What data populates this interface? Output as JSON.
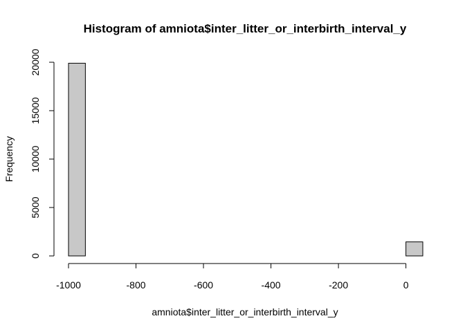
{
  "chart_data": {
    "type": "bar",
    "title": "Histogram of amniota$inter_litter_or_interbirth_interval_y",
    "xlabel": "amniota$inter_litter_or_interbirth_interval_y",
    "ylabel": "Frequency",
    "bin_width": 50,
    "bins": [
      {
        "start": -1000,
        "end": -950,
        "count": 19900
      },
      {
        "start": -950,
        "end": -900,
        "count": 0
      },
      {
        "start": -900,
        "end": -850,
        "count": 0
      },
      {
        "start": -850,
        "end": -800,
        "count": 0
      },
      {
        "start": -800,
        "end": -750,
        "count": 0
      },
      {
        "start": -750,
        "end": -700,
        "count": 0
      },
      {
        "start": -700,
        "end": -650,
        "count": 0
      },
      {
        "start": -650,
        "end": -600,
        "count": 0
      },
      {
        "start": -600,
        "end": -550,
        "count": 0
      },
      {
        "start": -550,
        "end": -500,
        "count": 0
      },
      {
        "start": -500,
        "end": -450,
        "count": 0
      },
      {
        "start": -450,
        "end": -400,
        "count": 0
      },
      {
        "start": -400,
        "end": -350,
        "count": 0
      },
      {
        "start": -350,
        "end": -300,
        "count": 0
      },
      {
        "start": -300,
        "end": -250,
        "count": 0
      },
      {
        "start": -250,
        "end": -200,
        "count": 0
      },
      {
        "start": -200,
        "end": -150,
        "count": 0
      },
      {
        "start": -150,
        "end": -100,
        "count": 0
      },
      {
        "start": -100,
        "end": -50,
        "count": 0
      },
      {
        "start": -50,
        "end": 0,
        "count": 0
      },
      {
        "start": 0,
        "end": 50,
        "count": 1450
      }
    ],
    "xlim": [
      -1000,
      50
    ],
    "ylim": [
      0,
      20000
    ],
    "x_ticks": [
      -1000,
      -800,
      -600,
      -400,
      -200,
      0
    ],
    "x_tick_labels": [
      "-1000",
      "-800",
      "-600",
      "-400",
      "-200",
      "0"
    ],
    "y_ticks": [
      0,
      5000,
      10000,
      15000,
      20000
    ],
    "y_tick_labels": [
      "0",
      "5000",
      "10000",
      "15000",
      "20000"
    ],
    "bar_fill": "#c8c8c8",
    "bar_stroke": "#000000",
    "grid": false,
    "legend": "none"
  }
}
